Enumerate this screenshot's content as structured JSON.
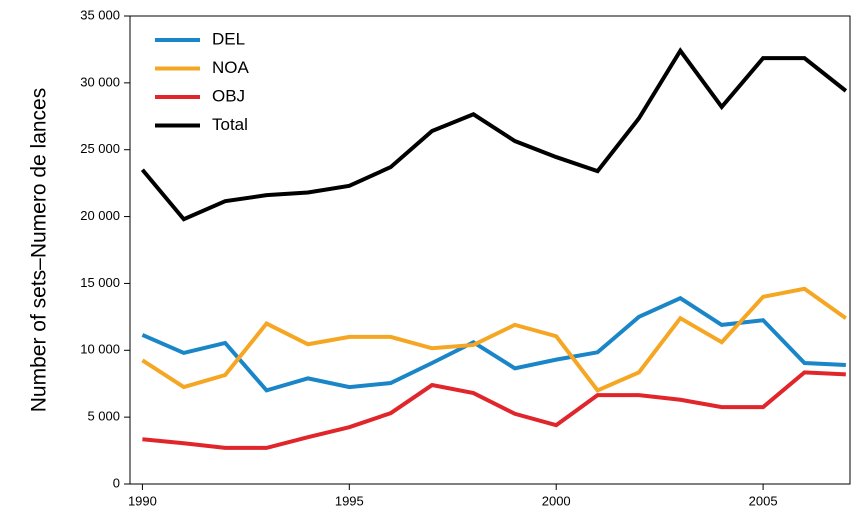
{
  "chart_data": {
    "type": "line",
    "ylabel": "Number of sets–Numero de lances",
    "x": [
      1990,
      1991,
      1992,
      1993,
      1994,
      1995,
      1996,
      1997,
      1998,
      1999,
      2000,
      2001,
      2002,
      2003,
      2004,
      2005,
      2006,
      2007
    ],
    "series": [
      {
        "name": "DEL",
        "color": "#1a86c8",
        "values": [
          11150,
          9800,
          10550,
          7000,
          7900,
          7250,
          7550,
          9050,
          10600,
          8650,
          9300,
          9850,
          12500,
          13900,
          11900,
          12250,
          9050,
          8900
        ]
      },
      {
        "name": "NOA",
        "color": "#f5a623",
        "values": [
          9250,
          7250,
          8150,
          12000,
          10450,
          11000,
          11000,
          10150,
          10400,
          11900,
          11050,
          7000,
          8350,
          12400,
          10600,
          14000,
          14600,
          12400
        ]
      },
      {
        "name": "OBJ",
        "color": "#e0262b",
        "values": [
          3350,
          3050,
          2700,
          2700,
          3500,
          4250,
          5300,
          7400,
          6800,
          5250,
          4400,
          6650,
          6650,
          6300,
          5750,
          5750,
          8350,
          8200
        ]
      },
      {
        "name": "Total",
        "color": "#000000",
        "values": [
          23500,
          19800,
          21150,
          21600,
          21800,
          22300,
          23700,
          26400,
          27650,
          25650,
          24450,
          23400,
          27350,
          32400,
          28200,
          31850,
          31850,
          29400
        ]
      }
    ],
    "xlim": [
      1989.7,
      2007.1
    ],
    "xticks": [
      1990,
      1995,
      2000,
      2005
    ],
    "ylim": [
      0,
      35000
    ],
    "yticks": [
      0,
      {
        "value": 5000,
        "label": "5 000"
      },
      {
        "value": 10000,
        "label": "10 000"
      },
      {
        "value": 15000,
        "label": "15 000"
      },
      {
        "value": 20000,
        "label": "20 000"
      },
      {
        "value": 25000,
        "label": "25 000"
      },
      {
        "value": 30000,
        "label": "30 000"
      },
      {
        "value": 35000,
        "label": "35 000"
      }
    ],
    "legend": "upper left"
  }
}
